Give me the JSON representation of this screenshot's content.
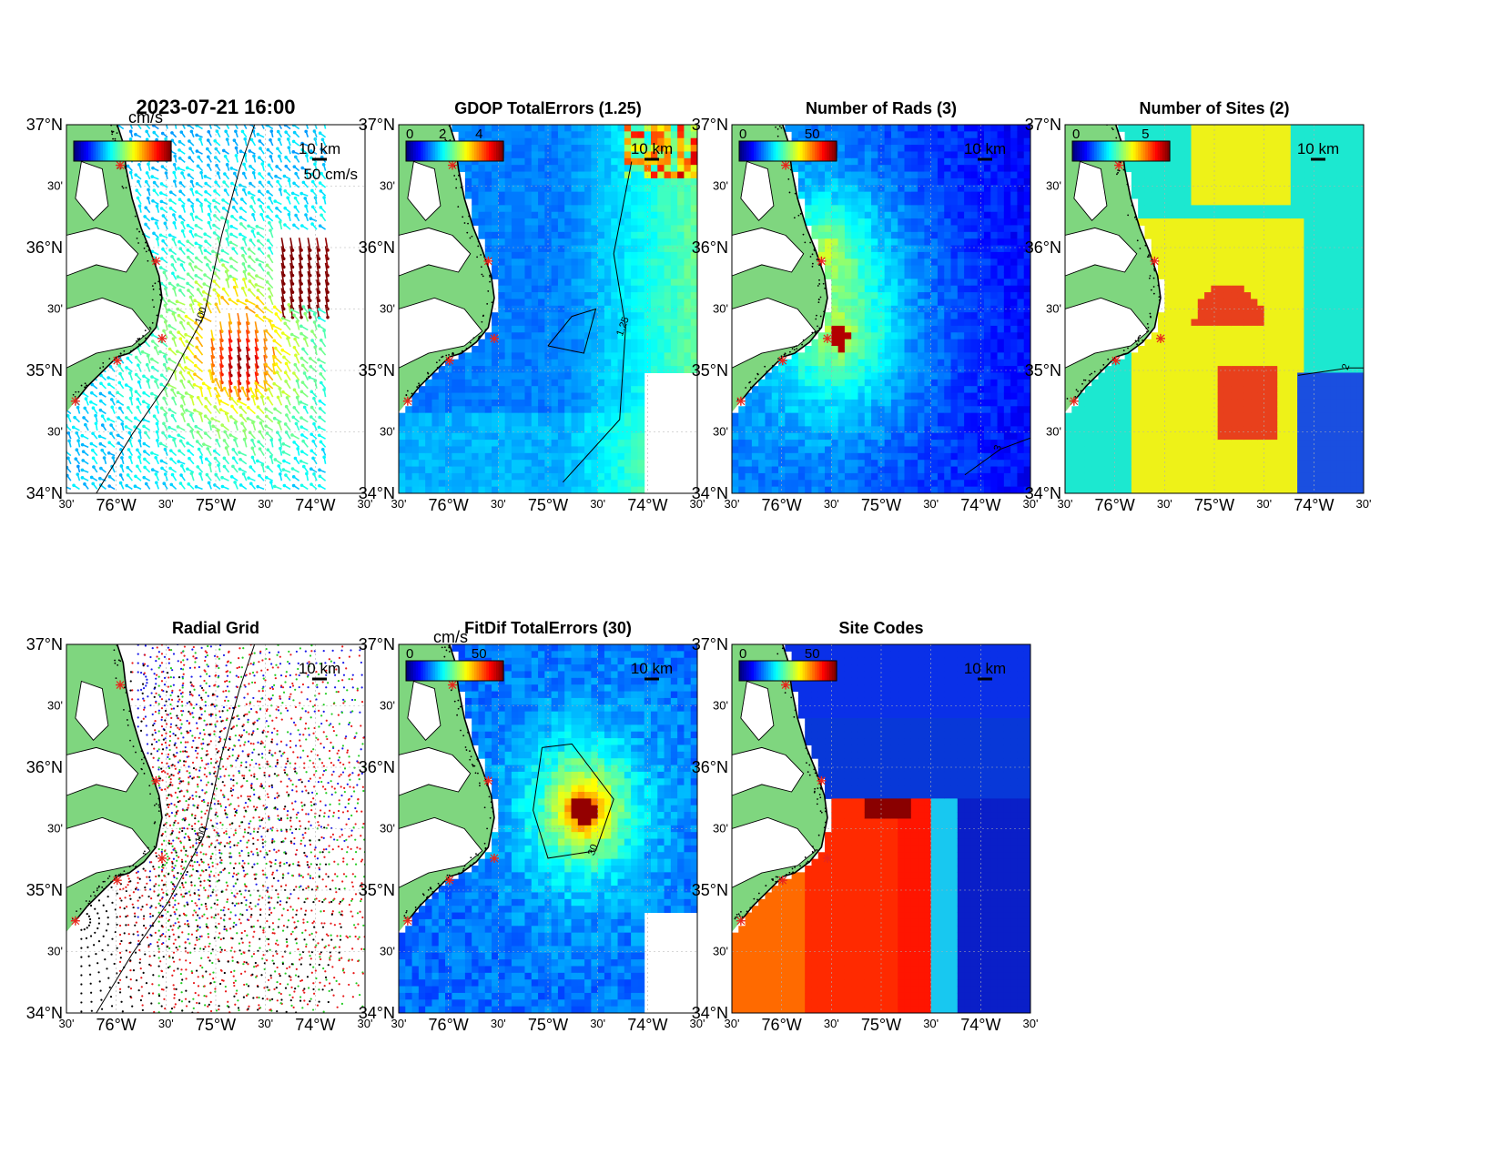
{
  "figure": {
    "timestamp": "2023-07-21 16:00",
    "colors": {
      "land": "#7fd67f",
      "coast": "#000000",
      "site_marker": "#e8261c",
      "grid": "#b0b0b0"
    },
    "lat_labels": [
      "37°N",
      "30'",
      "36°N",
      "30'",
      "35°N",
      "30'",
      "34°N"
    ],
    "lon_labels": [
      "30'",
      "76°W",
      "30'",
      "75°W",
      "30'",
      "74°W",
      "30'"
    ],
    "scale_label": "10 km",
    "panels": [
      {
        "id": "total-currents",
        "title": "2023-07-21 16:00",
        "colorbar_unit": "cm/s",
        "colorbar_ticks": [],
        "vector_scale_label": "50 cm/s",
        "contour_label": "100",
        "field": "vectors"
      },
      {
        "id": "gdop",
        "title": "GDOP TotalErrors (1.25)",
        "colorbar_unit": "",
        "colorbar_ticks": [
          "0",
          "2",
          "4"
        ],
        "contour_label": "1.25",
        "field": "gdop"
      },
      {
        "id": "num-rads",
        "title": "Number of Rads (3)",
        "colorbar_unit": "",
        "colorbar_ticks": [
          "0",
          "50"
        ],
        "contour_label": "3",
        "field": "rads"
      },
      {
        "id": "num-sites",
        "title": "Number of Sites (2)",
        "colorbar_unit": "",
        "colorbar_ticks": [
          "0",
          "5"
        ],
        "contour_label": "2",
        "field": "sites"
      },
      {
        "id": "radial-grid",
        "title": "Radial Grid",
        "colorbar_unit": "",
        "colorbar_ticks": [],
        "contour_label": "100",
        "field": "radial"
      },
      {
        "id": "fitdif",
        "title": "FitDif TotalErrors (30)",
        "colorbar_unit": "cm/s",
        "colorbar_ticks": [
          "0",
          "50"
        ],
        "contour_label": "30",
        "field": "fitdif"
      },
      {
        "id": "site-codes",
        "title": "Site Codes",
        "colorbar_unit": "",
        "colorbar_ticks": [
          "0",
          "50"
        ],
        "contour_label": "",
        "field": "codes"
      }
    ]
  }
}
